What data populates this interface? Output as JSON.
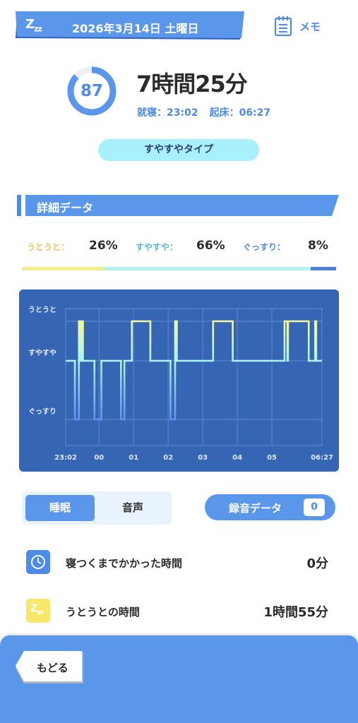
{
  "header": {
    "date": "2026年3月14日 土曜日",
    "zz_main": "Z",
    "zz_sub": "z",
    "zz_sub2": "z",
    "memo_label": "メモ"
  },
  "summary": {
    "score": "87",
    "score_fraction": 0.87,
    "duration": "7時間25分",
    "bedtime": "就寝：23:02",
    "waketime": "起床：06:27",
    "type": "すやすやタイプ"
  },
  "section": {
    "title": "詳細データ"
  },
  "stages": [
    {
      "label": "うとうと：",
      "value": "26%",
      "fraction": 0.26,
      "color": "#e8c65a",
      "bar_color": "#f3ec8c"
    },
    {
      "label": "すやすや：",
      "value": "66%",
      "fraction": 0.66,
      "color": "#5cb8c8",
      "bar_color": "#b3f1f6"
    },
    {
      "label": "ぐっすり：",
      "value": "8%",
      "fraction": 0.08,
      "color": "#4d8bea",
      "bar_color": "#4d7fd6"
    }
  ],
  "chart_data": {
    "type": "line",
    "levels": [
      "うとうと",
      "すやすや",
      "ぐっすり"
    ],
    "x_ticks": [
      "23:02",
      "00",
      "01",
      "02",
      "03",
      "04",
      "05",
      "06:27"
    ],
    "x_tick_minutes": [
      0,
      58,
      118,
      178,
      238,
      298,
      358,
      445
    ],
    "x_range_minutes": [
      0,
      445
    ],
    "stage_sequence": [
      {
        "t": 0,
        "stage": 1
      },
      {
        "t": 16,
        "stage": 2
      },
      {
        "t": 23,
        "stage": 0
      },
      {
        "t": 26,
        "stage": 1
      },
      {
        "t": 27,
        "stage": 0
      },
      {
        "t": 30,
        "stage": 1
      },
      {
        "t": 50,
        "stage": 2
      },
      {
        "t": 62,
        "stage": 1
      },
      {
        "t": 96,
        "stage": 2
      },
      {
        "t": 102,
        "stage": 1
      },
      {
        "t": 115,
        "stage": 0
      },
      {
        "t": 147,
        "stage": 1
      },
      {
        "t": 182,
        "stage": 2
      },
      {
        "t": 190,
        "stage": 0
      },
      {
        "t": 193,
        "stage": 1
      },
      {
        "t": 256,
        "stage": 0
      },
      {
        "t": 290,
        "stage": 1
      },
      {
        "t": 380,
        "stage": 0
      },
      {
        "t": 385,
        "stage": 1
      },
      {
        "t": 386,
        "stage": 0
      },
      {
        "t": 422,
        "stage": 1
      },
      {
        "t": 433,
        "stage": 0
      },
      {
        "t": 435,
        "stage": 1
      },
      {
        "t": 445,
        "stage": 1
      }
    ]
  },
  "tabs": [
    {
      "label": "睡眠",
      "active": true
    },
    {
      "label": "音声",
      "active": false
    }
  ],
  "recording": {
    "label": "録音データ",
    "count": "0"
  },
  "rows": [
    {
      "label": "寝つくまでかかった時間",
      "value": "0分",
      "icon": "clock-icon",
      "icon_color": "#4d8bea"
    },
    {
      "label": "うとうとの時間",
      "value": "1時間55分",
      "icon": "zz-icon",
      "icon_color": "#f7e76a",
      "icon_z": "Z",
      "icon_z1": "z",
      "icon_z2": "z"
    }
  ],
  "footer": {
    "back_label": "もどる"
  },
  "colors": {
    "accent": "#5a96ea",
    "chart_bg": "#3665b3"
  }
}
